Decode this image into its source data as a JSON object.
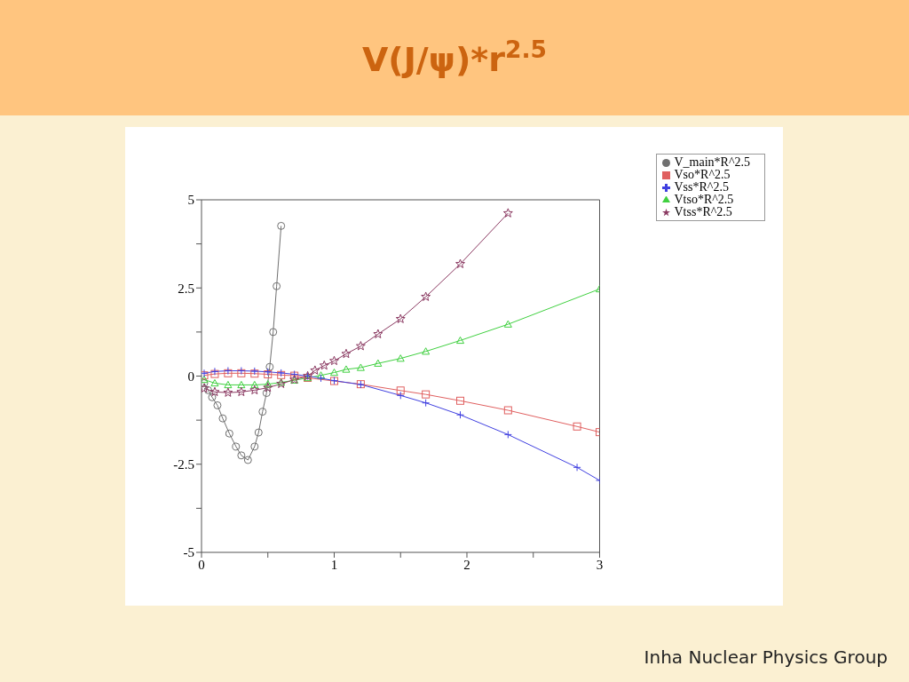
{
  "chart_data": {
    "type": "line",
    "title": "V(J/ψ)*r$^{2.5}$",
    "xlim": [
      0,
      3
    ],
    "ylim": [
      -5,
      5
    ],
    "xticks": [
      0,
      {
        "value": 0.5,
        "label": null
      },
      1,
      {
        "value": 1.5,
        "label": null
      },
      2,
      {
        "value": 2.5,
        "label": null
      },
      3
    ],
    "yticks": [
      -5,
      {
        "value": -3.75,
        "label": null
      },
      -2.5,
      {
        "value": -1.25,
        "label": null
      },
      0,
      {
        "value": 1.25,
        "label": null
      },
      2.5,
      {
        "value": 3.75,
        "label": null
      },
      5
    ],
    "grid": false,
    "legend": "top right",
    "line_style": "solid",
    "annotations": [
      "Inha Nuclear Physics Group"
    ],
    "series": [
      {
        "name": "V_main*R^2.5",
        "color": "#707070",
        "marker": "circle",
        "x": [
          0.02,
          0.05,
          0.08,
          0.12,
          0.16,
          0.21,
          0.26,
          0.3,
          0.35,
          0.4,
          0.43,
          0.46,
          0.49,
          0.514,
          0.54,
          0.566,
          0.6
        ],
        "values": [
          -0.2,
          -0.4,
          -0.6,
          -0.83,
          -1.2,
          -1.63,
          -2.0,
          -2.25,
          -2.38,
          -2.0,
          -1.6,
          -1.01,
          -0.48,
          0.26,
          1.25,
          2.55,
          4.26
        ]
      },
      {
        "name": "Vso*R^2.5",
        "color": "#e06060",
        "marker": "square",
        "x": [
          0.02,
          0.1,
          0.2,
          0.3,
          0.4,
          0.5,
          0.6,
          0.7,
          0.8,
          1.0,
          1.2,
          1.5,
          1.69,
          1.95,
          2.31,
          2.83,
          3
        ],
        "values": [
          0.02,
          0.06,
          0.08,
          0.08,
          0.07,
          0.05,
          0.03,
          0.01,
          -0.05,
          -0.14,
          -0.23,
          -0.41,
          -0.52,
          -0.7,
          -0.97,
          -1.43,
          -1.59
        ]
      },
      {
        "name": "Vtso*R^2.5",
        "color": "#40d040",
        "marker": "triangle",
        "x": [
          0.02,
          0.1,
          0.2,
          0.3,
          0.4,
          0.5,
          0.6,
          0.7,
          0.8,
          0.9,
          1.0,
          1.09,
          1.2,
          1.33,
          1.5,
          1.69,
          1.95,
          2.31,
          3
        ],
        "values": [
          -0.1,
          -0.2,
          -0.25,
          -0.25,
          -0.25,
          -0.23,
          -0.18,
          -0.12,
          -0.05,
          0.02,
          0.1,
          0.19,
          0.24,
          0.36,
          0.5,
          0.7,
          1.01,
          1.47,
          2.47
        ]
      },
      {
        "name": "Vss*R^2.5",
        "color": "#4040e0",
        "marker": "cross",
        "x": [
          0.02,
          0.1,
          0.2,
          0.3,
          0.4,
          0.5,
          0.6,
          0.7,
          0.8,
          0.9,
          1.0,
          1.2,
          1.5,
          1.69,
          1.95,
          2.31,
          2.83,
          3
        ],
        "values": [
          0.08,
          0.13,
          0.15,
          0.15,
          0.14,
          0.12,
          0.09,
          0.05,
          0.0,
          -0.06,
          -0.13,
          -0.24,
          -0.55,
          -0.76,
          -1.1,
          -1.66,
          -2.59,
          -2.96
        ]
      },
      {
        "name": "Vtss*R^2.5",
        "color": "#8b3a62",
        "marker": "star",
        "x": [
          0.02,
          0.1,
          0.2,
          0.3,
          0.4,
          0.5,
          0.6,
          0.7,
          0.8,
          0.855,
          0.925,
          1.0,
          1.09,
          1.2,
          1.33,
          1.5,
          1.69,
          1.95,
          2.31
        ],
        "values": [
          -0.35,
          -0.45,
          -0.47,
          -0.45,
          -0.4,
          -0.33,
          -0.22,
          -0.1,
          0.0,
          0.16,
          0.3,
          0.43,
          0.63,
          0.85,
          1.19,
          1.62,
          2.25,
          3.18,
          4.62
        ]
      }
    ]
  }
}
